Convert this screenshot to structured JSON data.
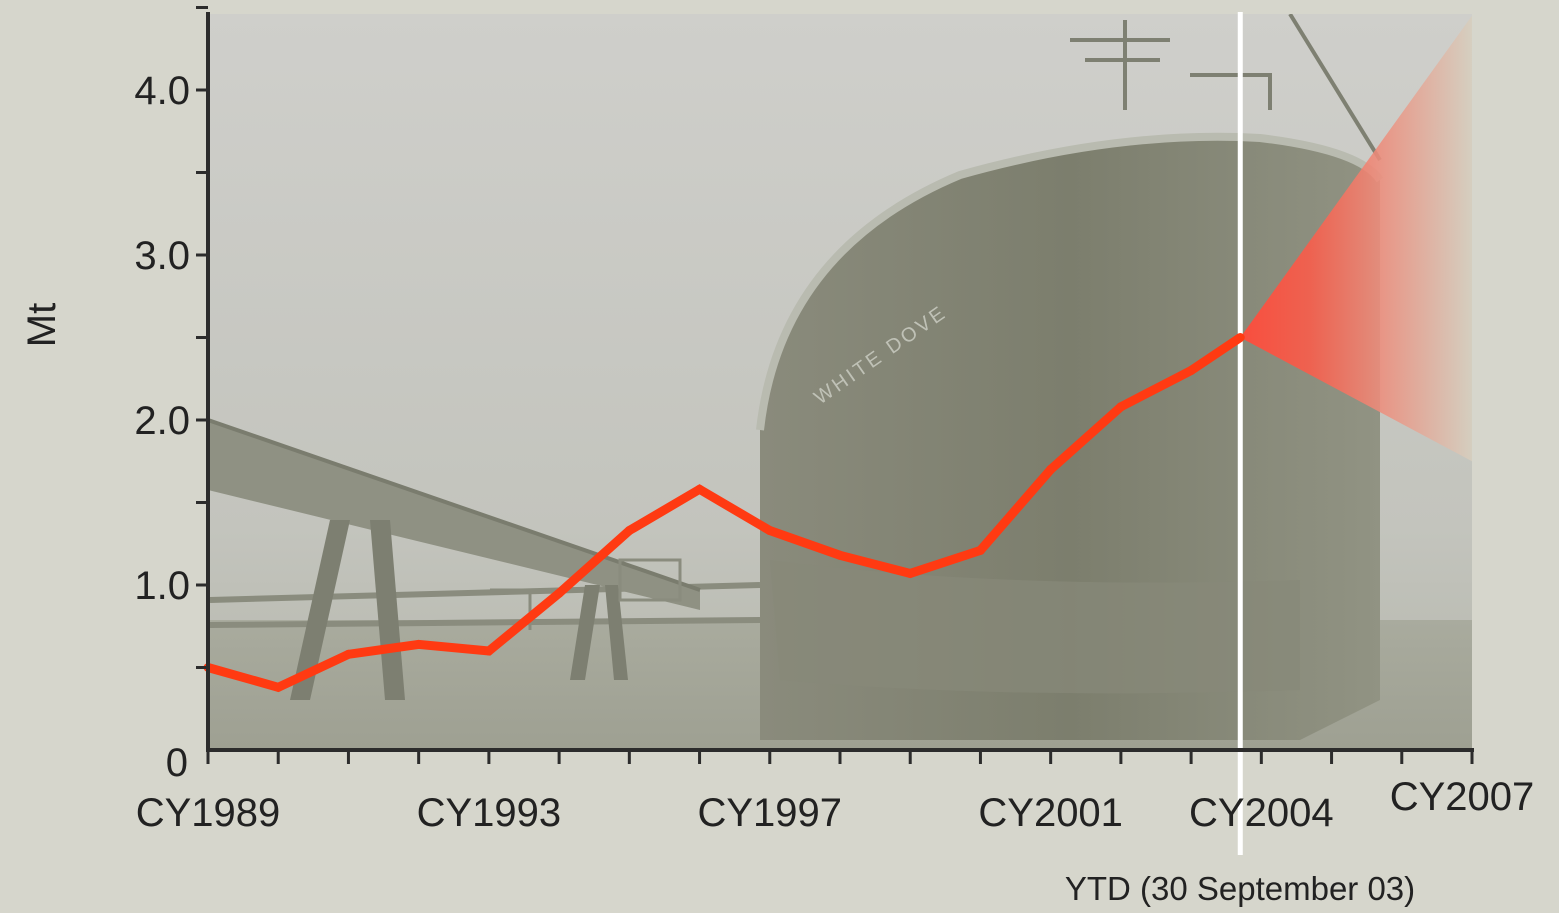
{
  "chart_data": {
    "type": "line",
    "ylabel": "Mt",
    "xlabel": "",
    "title": "",
    "ylim": [
      0,
      4.5
    ],
    "y_ticks": [
      {
        "value": 0,
        "label": "0"
      },
      {
        "value": 1,
        "label": "1.0"
      },
      {
        "value": 2,
        "label": "2.0"
      },
      {
        "value": 3,
        "label": "3.0"
      },
      {
        "value": 4,
        "label": "4.0"
      }
    ],
    "x_range": [
      1989,
      2007
    ],
    "x_tick_labels": [
      {
        "year": 1989,
        "label": "CY1989"
      },
      {
        "year": 1993,
        "label": "CY1993"
      },
      {
        "year": 1997,
        "label": "CY1997"
      },
      {
        "year": 2001,
        "label": "CY2001"
      },
      {
        "year": 2004,
        "label": "CY2004"
      },
      {
        "year": 2007,
        "label": "CY2007"
      }
    ],
    "series": [
      {
        "color": "#ff3a12",
        "points": [
          {
            "x": 1989,
            "y": 0.5
          },
          {
            "x": 1990,
            "y": 0.38
          },
          {
            "x": 1991,
            "y": 0.58
          },
          {
            "x": 1992,
            "y": 0.64
          },
          {
            "x": 1993,
            "y": 0.6
          },
          {
            "x": 1994,
            "y": 0.95
          },
          {
            "x": 1995,
            "y": 1.33
          },
          {
            "x": 1996,
            "y": 1.58
          },
          {
            "x": 1997,
            "y": 1.33
          },
          {
            "x": 1998,
            "y": 1.18
          },
          {
            "x": 1999,
            "y": 1.07
          },
          {
            "x": 2000,
            "y": 1.21
          },
          {
            "x": 2001,
            "y": 1.7
          },
          {
            "x": 2002,
            "y": 2.08
          },
          {
            "x": 2003,
            "y": 2.3
          },
          {
            "x": 2003.7,
            "y": 2.5
          }
        ]
      }
    ],
    "forecast_cone": {
      "origin": {
        "x": 2003.7,
        "y": 2.5
      },
      "upper": {
        "x": 2007,
        "y": 4.45
      },
      "lower": {
        "x": 2007,
        "y": 1.75
      },
      "color": "#ff4a3a"
    },
    "ytd_marker": {
      "x": 2003.7,
      "label": "YTD (30 September 03)",
      "color": "#ffffff"
    },
    "background": "photograph of a tanker ship moored at a jetty (faded)"
  }
}
